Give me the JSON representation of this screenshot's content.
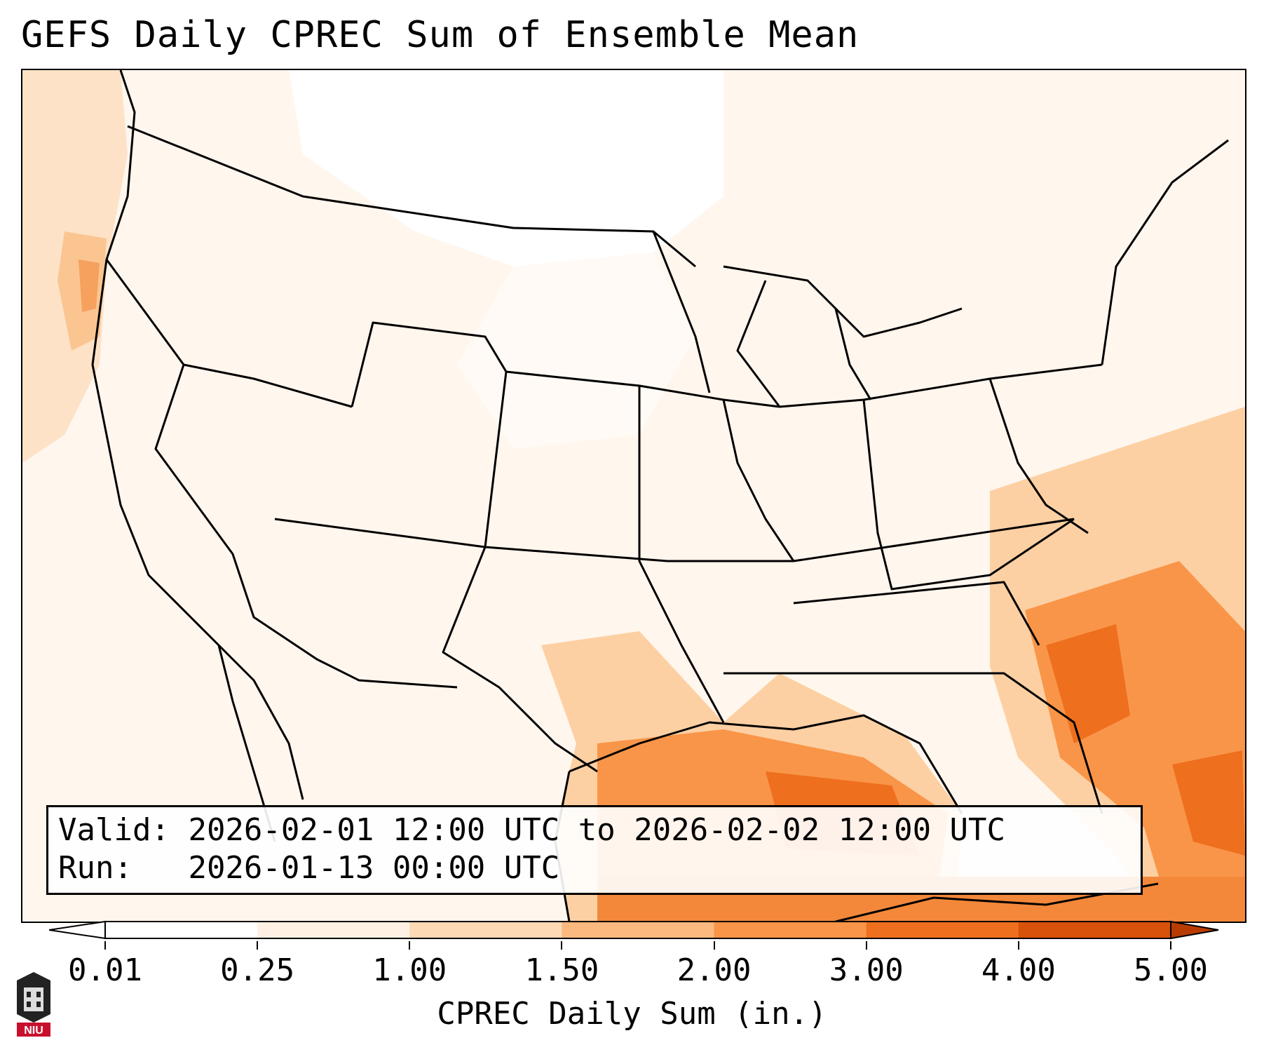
{
  "title": "GEFS Daily CPREC Sum of Ensemble Mean",
  "info": {
    "valid_label": "Valid:",
    "valid_value": "2026-02-01 12:00 UTC to 2026-02-02 12:00 UTC",
    "run_label": "Run:",
    "run_value": "2026-01-13 00:00 UTC"
  },
  "colorbar": {
    "title": "CPREC Daily Sum (in.)",
    "ticks": [
      "0.01",
      "0.25",
      "1.00",
      "1.50",
      "2.00",
      "3.00",
      "4.00",
      "5.00"
    ],
    "colors": [
      "#ffffff",
      "#fff0e3",
      "#fdd9b6",
      "#fcb97f",
      "#f99548",
      "#ee6f1e",
      "#d95209",
      "#b83c02"
    ]
  },
  "logo": {
    "text": "NIU"
  }
}
